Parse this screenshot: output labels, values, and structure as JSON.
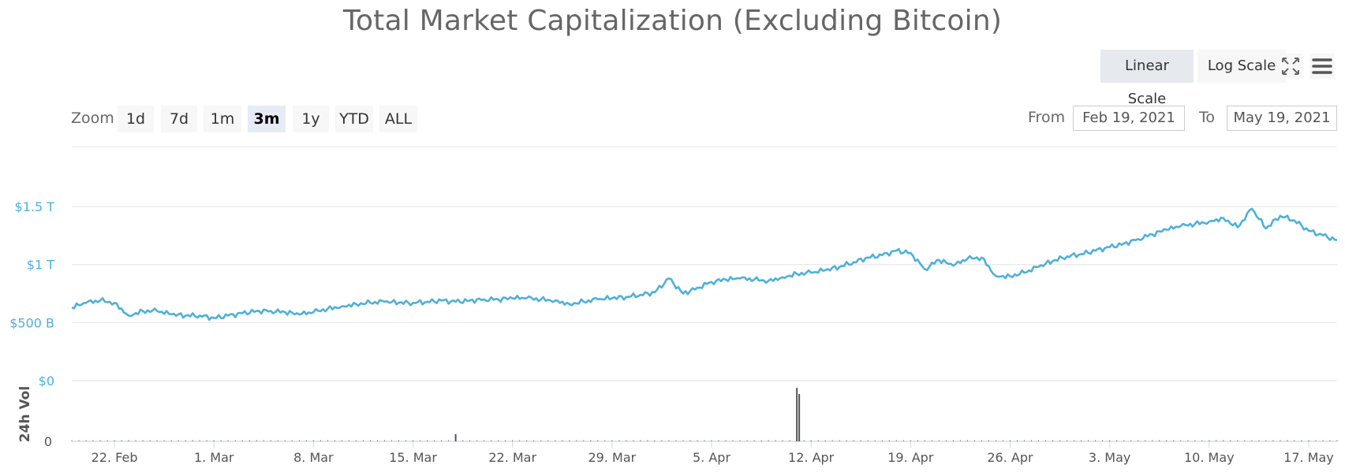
{
  "chart_data": {
    "type": "line",
    "title": "Total Market Capitalization (Excluding Bitcoin)",
    "ylabel": "",
    "xlabel": "",
    "x_range": [
      "2021-02-19",
      "2021-05-19"
    ],
    "ylim": [
      0,
      1500000000000
    ],
    "y_ticks": [
      {
        "label": "$1.5 T",
        "value": 1500000000000
      },
      {
        "label": "$1 T",
        "value": 1000000000000
      },
      {
        "label": "$500 B",
        "value": 500000000000
      },
      {
        "label": "$0",
        "value": 0
      }
    ],
    "x_ticks": [
      {
        "label": "22. Feb",
        "date": "2021-02-22"
      },
      {
        "label": "1. Mar",
        "date": "2021-03-01"
      },
      {
        "label": "8. Mar",
        "date": "2021-03-08"
      },
      {
        "label": "15. Mar",
        "date": "2021-03-15"
      },
      {
        "label": "22. Mar",
        "date": "2021-03-22"
      },
      {
        "label": "29. Mar",
        "date": "2021-03-29"
      },
      {
        "label": "5. Apr",
        "date": "2021-04-05"
      },
      {
        "label": "12. Apr",
        "date": "2021-04-12"
      },
      {
        "label": "19. Apr",
        "date": "2021-04-19"
      },
      {
        "label": "26. Apr",
        "date": "2021-04-26"
      },
      {
        "label": "3. May",
        "date": "2021-05-03"
      },
      {
        "label": "10. May",
        "date": "2021-05-10"
      },
      {
        "label": "17. May",
        "date": "2021-05-17"
      }
    ],
    "series": [
      {
        "color": "#4fb0d9",
        "points": [
          [
            "2021-02-19",
            630000000000
          ],
          [
            "2021-02-20",
            670000000000
          ],
          [
            "2021-02-21",
            690000000000
          ],
          [
            "2021-02-22",
            670000000000
          ],
          [
            "2021-02-23",
            560000000000
          ],
          [
            "2021-02-24",
            600000000000
          ],
          [
            "2021-02-25",
            600000000000
          ],
          [
            "2021-02-26",
            570000000000
          ],
          [
            "2021-02-27",
            560000000000
          ],
          [
            "2021-02-28",
            560000000000
          ],
          [
            "2021-03-01",
            540000000000
          ],
          [
            "2021-03-02",
            560000000000
          ],
          [
            "2021-03-03",
            580000000000
          ],
          [
            "2021-03-04",
            600000000000
          ],
          [
            "2021-03-05",
            600000000000
          ],
          [
            "2021-03-06",
            590000000000
          ],
          [
            "2021-03-07",
            570000000000
          ],
          [
            "2021-03-08",
            590000000000
          ],
          [
            "2021-03-09",
            620000000000
          ],
          [
            "2021-03-10",
            640000000000
          ],
          [
            "2021-03-11",
            660000000000
          ],
          [
            "2021-03-12",
            670000000000
          ],
          [
            "2021-03-13",
            680000000000
          ],
          [
            "2021-03-14",
            670000000000
          ],
          [
            "2021-03-15",
            670000000000
          ],
          [
            "2021-03-16",
            680000000000
          ],
          [
            "2021-03-17",
            690000000000
          ],
          [
            "2021-03-18",
            680000000000
          ],
          [
            "2021-03-19",
            690000000000
          ],
          [
            "2021-03-20",
            700000000000
          ],
          [
            "2021-03-21",
            700000000000
          ],
          [
            "2021-03-22",
            710000000000
          ],
          [
            "2021-03-23",
            710000000000
          ],
          [
            "2021-03-24",
            700000000000
          ],
          [
            "2021-03-25",
            690000000000
          ],
          [
            "2021-03-26",
            660000000000
          ],
          [
            "2021-03-27",
            680000000000
          ],
          [
            "2021-03-28",
            700000000000
          ],
          [
            "2021-03-29",
            710000000000
          ],
          [
            "2021-03-30",
            720000000000
          ],
          [
            "2021-03-31",
            740000000000
          ],
          [
            "2021-04-01",
            760000000000
          ],
          [
            "2021-04-02",
            880000000000
          ],
          [
            "2021-04-03",
            750000000000
          ],
          [
            "2021-04-04",
            800000000000
          ],
          [
            "2021-04-05",
            850000000000
          ],
          [
            "2021-04-06",
            870000000000
          ],
          [
            "2021-04-07",
            880000000000
          ],
          [
            "2021-04-08",
            870000000000
          ],
          [
            "2021-04-09",
            860000000000
          ],
          [
            "2021-04-10",
            890000000000
          ],
          [
            "2021-04-11",
            920000000000
          ],
          [
            "2021-04-12",
            930000000000
          ],
          [
            "2021-04-13",
            950000000000
          ],
          [
            "2021-04-14",
            980000000000
          ],
          [
            "2021-04-15",
            1020000000000
          ],
          [
            "2021-04-16",
            1060000000000
          ],
          [
            "2021-04-17",
            1080000000000
          ],
          [
            "2021-04-18",
            1120000000000
          ],
          [
            "2021-04-19",
            1100000000000
          ],
          [
            "2021-04-20",
            960000000000
          ],
          [
            "2021-04-21",
            1040000000000
          ],
          [
            "2021-04-22",
            990000000000
          ],
          [
            "2021-04-23",
            1050000000000
          ],
          [
            "2021-04-24",
            1060000000000
          ],
          [
            "2021-04-25",
            900000000000
          ],
          [
            "2021-04-26",
            900000000000
          ],
          [
            "2021-04-27",
            930000000000
          ],
          [
            "2021-04-28",
            980000000000
          ],
          [
            "2021-04-29",
            1030000000000
          ],
          [
            "2021-04-30",
            1070000000000
          ],
          [
            "2021-05-01",
            1090000000000
          ],
          [
            "2021-05-02",
            1120000000000
          ],
          [
            "2021-05-03",
            1150000000000
          ],
          [
            "2021-05-04",
            1180000000000
          ],
          [
            "2021-05-05",
            1220000000000
          ],
          [
            "2021-05-06",
            1260000000000
          ],
          [
            "2021-05-07",
            1300000000000
          ],
          [
            "2021-05-08",
            1330000000000
          ],
          [
            "2021-05-09",
            1350000000000
          ],
          [
            "2021-05-10",
            1370000000000
          ],
          [
            "2021-05-11",
            1400000000000
          ],
          [
            "2021-05-12",
            1320000000000
          ],
          [
            "2021-05-13",
            1480000000000
          ],
          [
            "2021-05-14",
            1310000000000
          ],
          [
            "2021-05-15",
            1420000000000
          ],
          [
            "2021-05-16",
            1380000000000
          ],
          [
            "2021-05-17",
            1290000000000
          ],
          [
            "2021-05-18",
            1250000000000
          ],
          [
            "2021-05-19",
            1210000000000
          ]
        ]
      }
    ],
    "volume": {
      "label": "24h Vol",
      "ticks": [
        {
          "label": "$0",
          "value": 0
        },
        {
          "label": "0",
          "value": 0
        }
      ],
      "spikes": [
        {
          "date": "2021-03-18",
          "value": 0.12
        },
        {
          "date": "2021-04-11",
          "value": 0.88
        },
        {
          "date": "2021-04-11",
          "value": 0.78
        }
      ],
      "color": "#555555"
    },
    "grid": true,
    "legend": "none"
  },
  "controls": {
    "linear_scale": "Linear Scale",
    "log_scale": "Log Scale",
    "zoom_label": "Zoom",
    "zoom_options": [
      "1d",
      "7d",
      "1m",
      "3m",
      "1y",
      "YTD",
      "ALL"
    ],
    "zoom_selected": "3m",
    "from_label": "From",
    "from_value": "Feb 19, 2021",
    "to_label": "To",
    "to_value": "May 19, 2021",
    "fullscreen_icon": "fullscreen-icon",
    "menu_icon": "hamburger-menu-icon"
  }
}
